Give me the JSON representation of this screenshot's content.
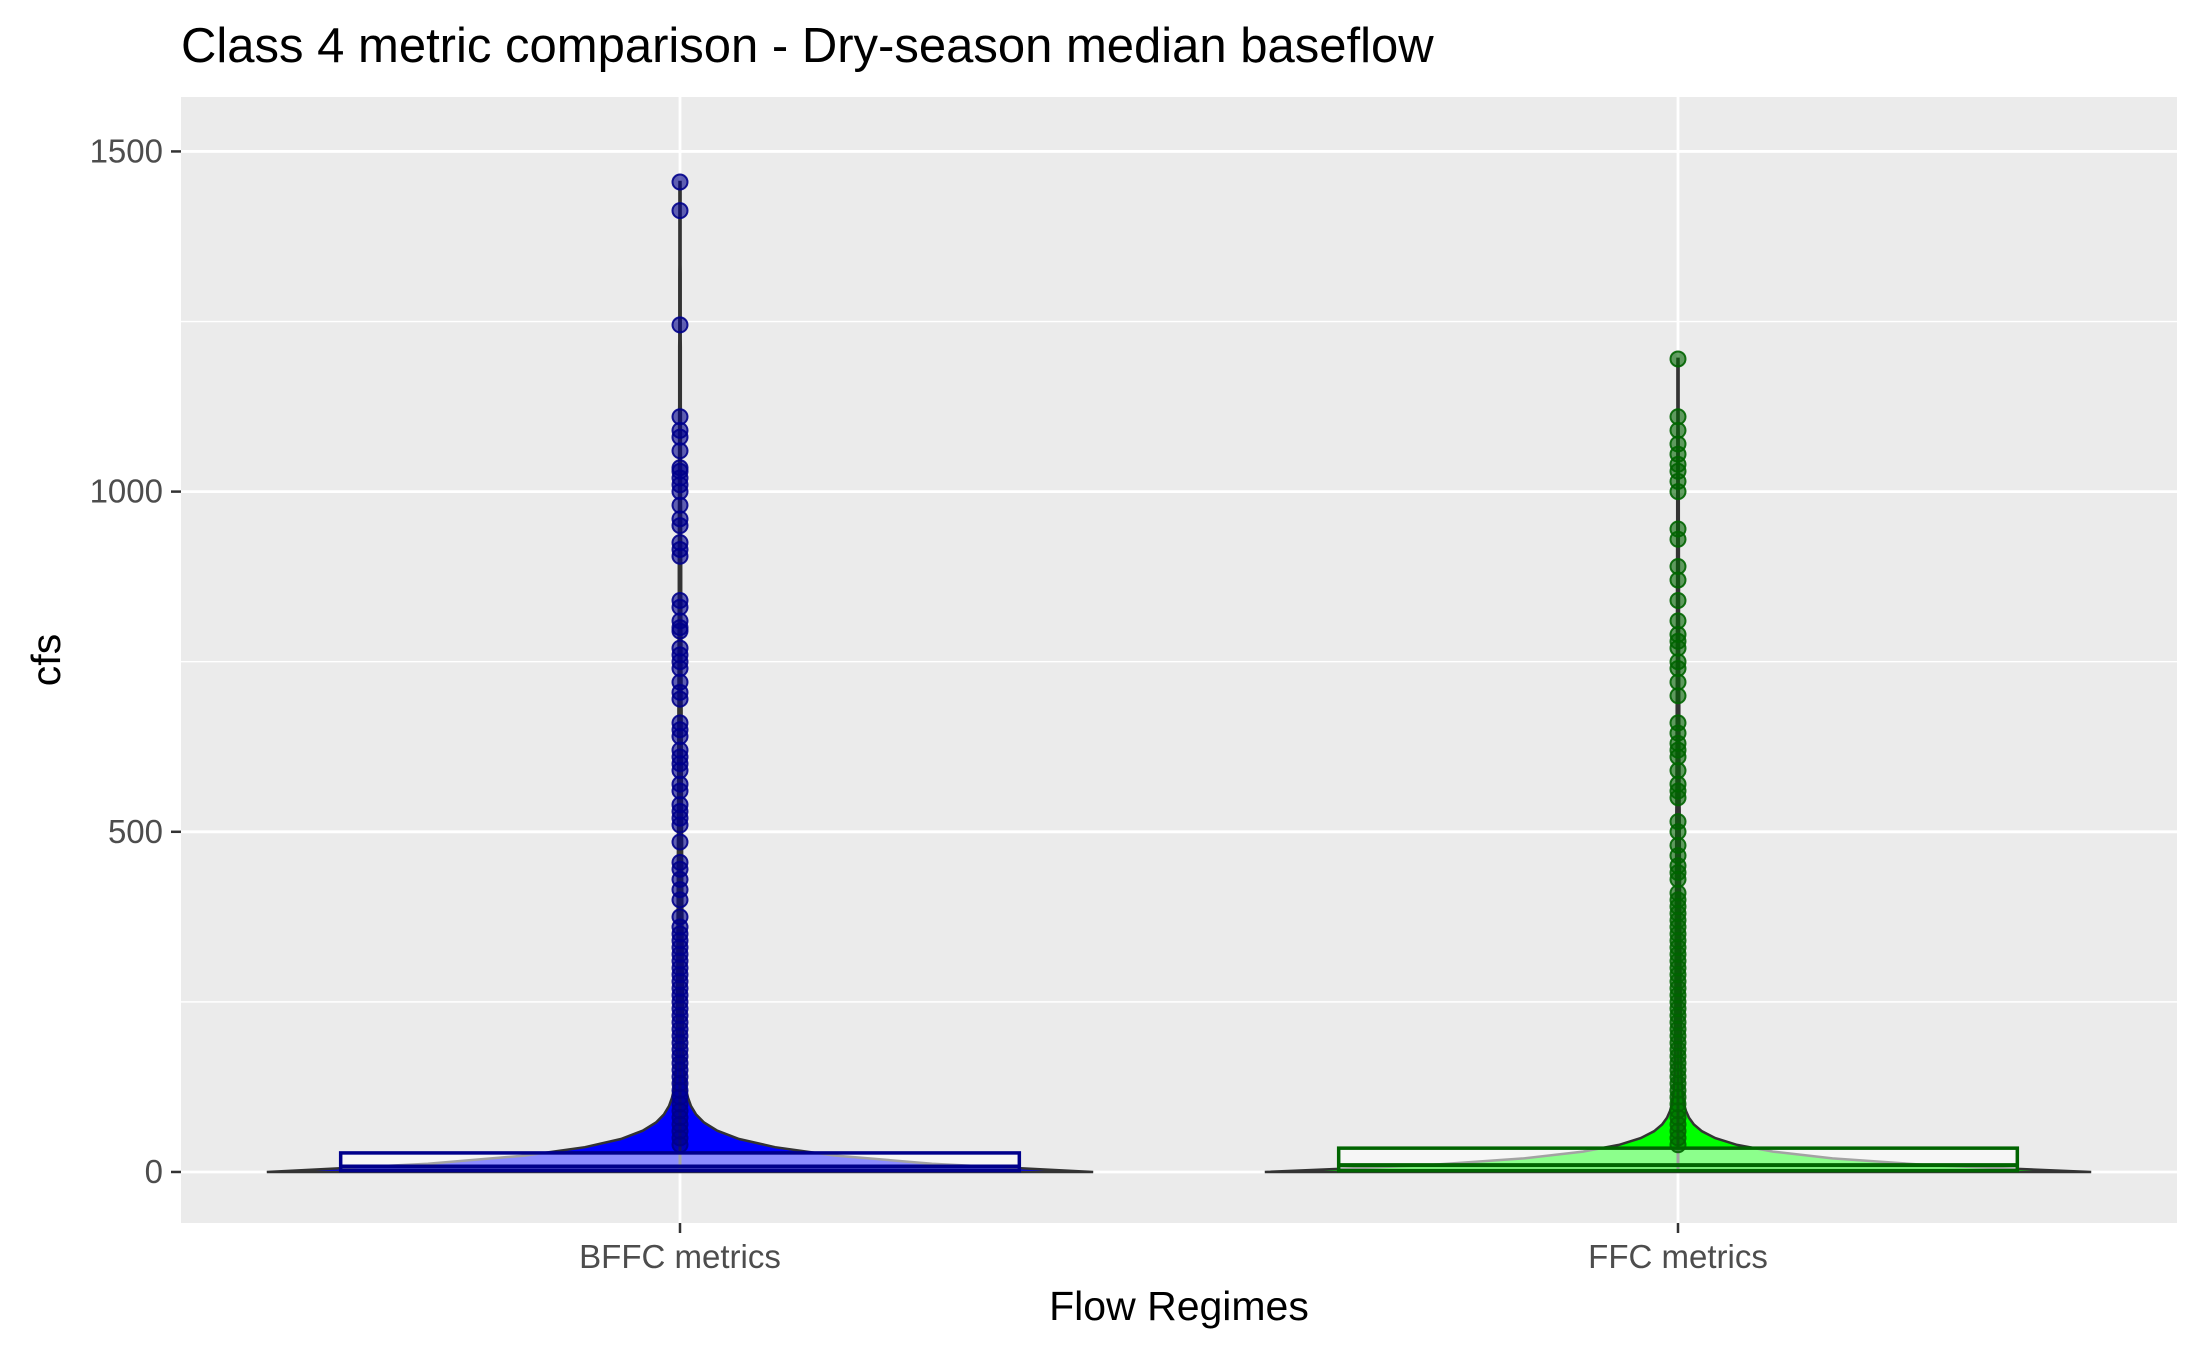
{
  "chart_data": {
    "type": "violin",
    "title": "Class 4 metric comparison - Dry-season median baseflow",
    "xlabel": "Flow Regimes",
    "ylabel": "cfs",
    "categories": [
      "BFFC metrics",
      "FFC metrics"
    ],
    "ylim": [
      -75,
      1580
    ],
    "yticks": [
      0,
      500,
      1000,
      1500
    ],
    "y_minor_ticks": [
      250,
      750,
      1250
    ],
    "grid": true,
    "legend": "none",
    "colors": {
      "panel_bg": "#EBEBEB",
      "grid": "#FFFFFF",
      "BFFC metrics": {
        "fill": "#0000FF",
        "outline": "#00008B",
        "box_fill": "#8C8CFF"
      },
      "FFC metrics": {
        "fill": "#00FF00",
        "outline": "#006400",
        "box_fill": "#8CFF8C"
      }
    },
    "series": [
      {
        "category": "BFFC metrics",
        "box": {
          "q1": 2,
          "median": 8,
          "q3": 28,
          "whisker_low": 0,
          "whisker_high": 1450
        },
        "points": [
          1455,
          1413,
          1245,
          1110,
          1090,
          1080,
          1060,
          1035,
          1030,
          1020,
          1010,
          1000,
          980,
          960,
          950,
          925,
          915,
          905,
          840,
          830,
          810,
          800,
          795,
          770,
          760,
          750,
          740,
          720,
          705,
          695,
          660,
          650,
          640,
          620,
          610,
          600,
          590,
          570,
          560,
          540,
          530,
          520,
          510,
          485,
          455,
          445,
          430,
          415,
          400,
          375,
          360,
          350,
          340,
          330,
          320,
          310,
          300,
          290,
          280,
          270,
          260,
          250,
          240,
          230,
          220,
          210,
          200,
          190,
          180,
          170,
          160,
          150,
          140,
          130,
          120,
          110,
          100,
          90,
          80,
          70,
          60,
          50,
          40
        ]
      },
      {
        "category": "FFC metrics",
        "box": {
          "q1": 2,
          "median": 10,
          "q3": 35,
          "whisker_low": 0,
          "whisker_high": 1195
        },
        "points": [
          1195,
          1110,
          1090,
          1070,
          1055,
          1040,
          1030,
          1015,
          1000,
          945,
          930,
          890,
          870,
          840,
          810,
          790,
          780,
          770,
          750,
          740,
          720,
          700,
          660,
          645,
          630,
          620,
          610,
          590,
          570,
          560,
          550,
          515,
          500,
          480,
          465,
          450,
          440,
          430,
          410,
          400,
          390,
          380,
          370,
          360,
          350,
          340,
          330,
          320,
          310,
          300,
          290,
          280,
          270,
          260,
          250,
          240,
          230,
          220,
          210,
          200,
          190,
          180,
          170,
          160,
          150,
          140,
          130,
          120,
          110,
          100,
          90,
          80,
          70,
          60,
          50,
          40
        ]
      }
    ]
  }
}
